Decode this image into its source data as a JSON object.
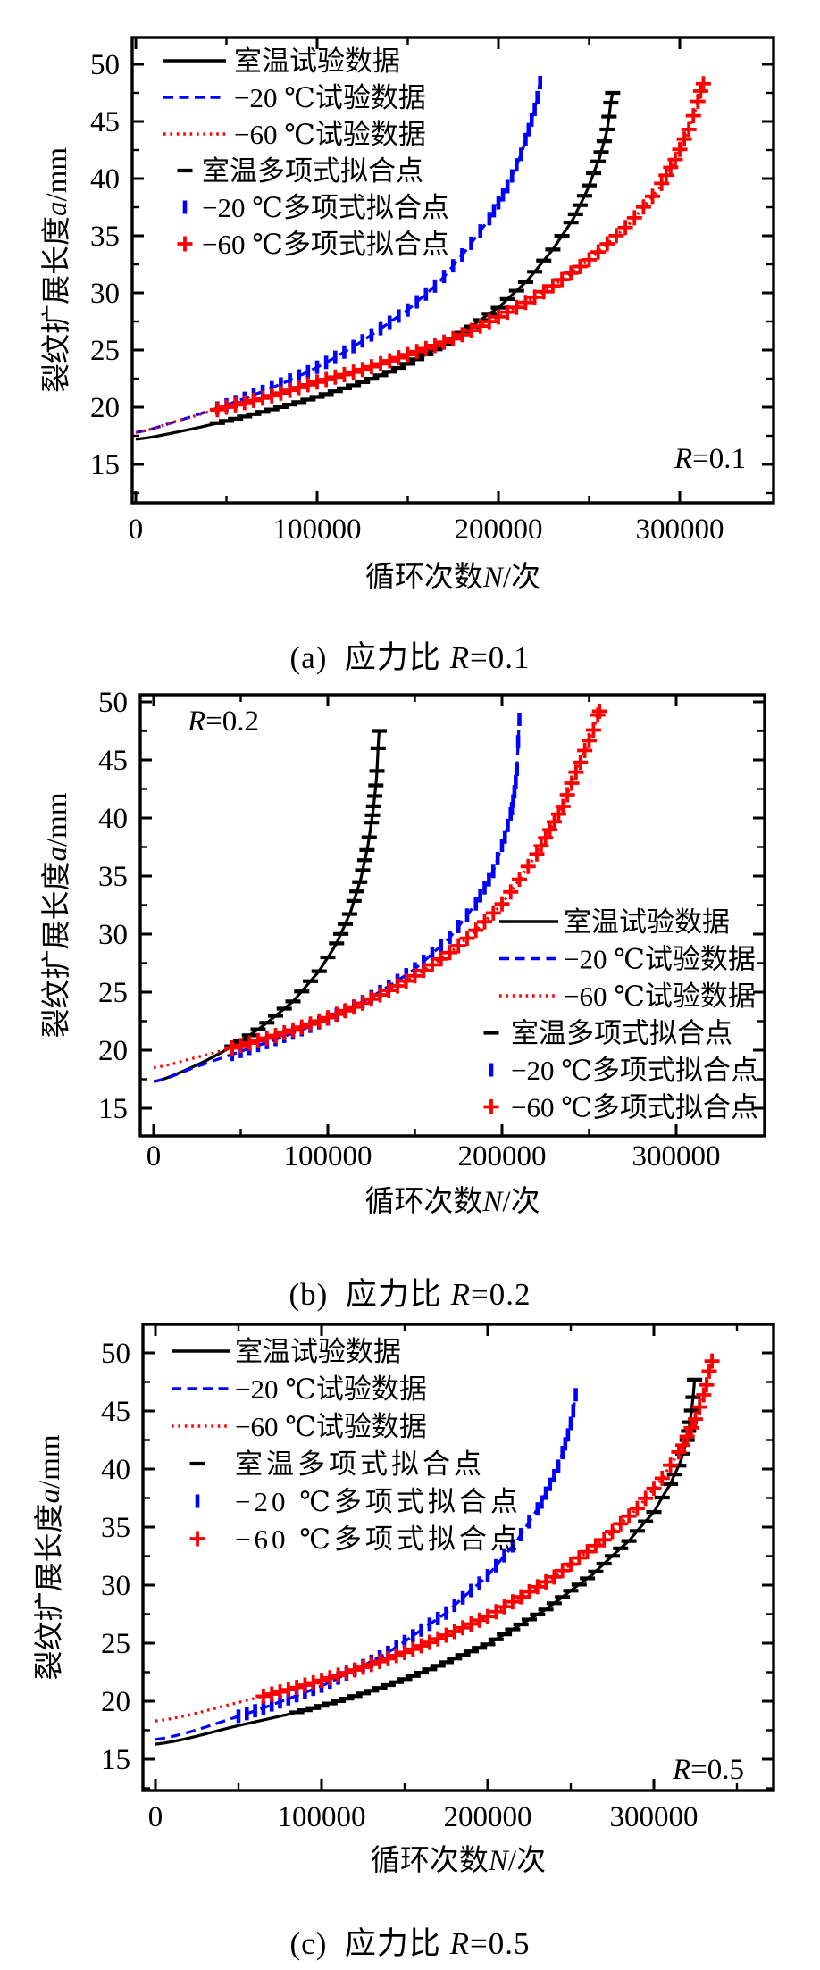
{
  "colors": {
    "room": "#000000",
    "minus20": "#0000ff",
    "minus60": "#ff0000",
    "axis": "#000000",
    "background": "#ffffff"
  },
  "chart_data": [
    {
      "id": "a",
      "type": "line",
      "annotation": {
        "var": "R",
        "text": "=0.1"
      },
      "caption": {
        "prefix": "(a)  应力比 ",
        "var": "R",
        "suffix": "=0.1"
      },
      "xlabel": {
        "prefix": "循环次数",
        "var": "N",
        "suffix": "/次"
      },
      "ylabel": {
        "prefix": "裂纹扩展长度",
        "var": "a",
        "suffix": "/mm"
      },
      "axes": {
        "x": {
          "min": 0,
          "max": 349000,
          "major_ticks": [
            0,
            100000,
            200000,
            300000
          ],
          "tick_labels": [
            "0",
            "100000",
            "200000",
            "300000"
          ],
          "minor_step": 50000
        },
        "y": {
          "min": 12,
          "max": 52.3,
          "major_ticks": [
            15,
            20,
            25,
            30,
            35,
            40,
            45,
            50
          ],
          "minor_step": 2.5
        }
      },
      "legend_position": "top-left",
      "series": [
        {
          "name": "室温试验数据",
          "role": "line",
          "style": "solid",
          "color": "room",
          "points": [
            [
              0,
              17.2
            ],
            [
              25000,
              17.9
            ],
            [
              50000,
              18.8
            ],
            [
              75000,
              19.8
            ],
            [
              100000,
              20.9
            ],
            [
              125000,
              22.2
            ],
            [
              150000,
              23.8
            ],
            [
              175000,
              26.0
            ],
            [
              200000,
              28.7
            ],
            [
              216000,
              31.1
            ],
            [
              230000,
              33.8
            ],
            [
              241000,
              36.4
            ],
            [
              249000,
              39.0
            ],
            [
              256000,
              41.9
            ],
            [
              260000,
              44.3
            ],
            [
              263000,
              47.5
            ]
          ]
        },
        {
          "name": "−20 ℃试验数据",
          "role": "line",
          "style": "dashed",
          "color": "minus20",
          "points": [
            [
              0,
              17.8
            ],
            [
              25000,
              18.9
            ],
            [
              50000,
              20.2
            ],
            [
              75000,
              21.7
            ],
            [
              100000,
              23.5
            ],
            [
              125000,
              25.8
            ],
            [
              150000,
              28.5
            ],
            [
              167000,
              30.9
            ],
            [
              182000,
              33.7
            ],
            [
              195000,
              36.5
            ],
            [
              205000,
              39.3
            ],
            [
              213000,
              42.3
            ],
            [
              218000,
              44.9
            ],
            [
              221000,
              46.6
            ],
            [
              223000,
              48.4
            ]
          ]
        },
        {
          "name": "−60 ℃试验数据",
          "role": "line",
          "style": "dotted",
          "color": "minus60",
          "points": [
            [
              0,
              17.8
            ],
            [
              25000,
              18.9
            ],
            [
              50000,
              20.0
            ],
            [
              75000,
              21.0
            ],
            [
              100000,
              22.2
            ],
            [
              125000,
              23.3
            ],
            [
              150000,
              24.6
            ],
            [
              175000,
              26.0
            ],
            [
              200000,
              27.9
            ],
            [
              225000,
              30.1
            ],
            [
              250000,
              32.9
            ],
            [
              272000,
              36.0
            ],
            [
              288000,
              39.0
            ],
            [
              298000,
              41.8
            ],
            [
              305000,
              44.3
            ],
            [
              309000,
              46.2
            ],
            [
              313000,
              48.3
            ]
          ]
        },
        {
          "name": "室温多项式拟合点",
          "role": "markers",
          "marker": "hdash",
          "color": "room",
          "source": 0,
          "start": 45000,
          "step": 5000
        },
        {
          "name": "−20 ℃多项式拟合点",
          "role": "markers",
          "marker": "vbar",
          "color": "minus20",
          "source": 1,
          "start": 45000,
          "step": 5000
        },
        {
          "name": "−60 ℃多项式拟合点",
          "role": "markers",
          "marker": "plus",
          "color": "minus60",
          "source": 2,
          "start": 45000,
          "step": 5000
        }
      ]
    },
    {
      "id": "b",
      "type": "line",
      "annotation": {
        "var": "R",
        "text": "=0.2"
      },
      "caption": {
        "prefix": "(b)  应力比 ",
        "var": "R",
        "suffix": "=0.2"
      },
      "xlabel": {
        "prefix": "循环次数",
        "var": "N",
        "suffix": "/次"
      },
      "ylabel": {
        "prefix": "裂纹扩展长度",
        "var": "a",
        "suffix": "/mm"
      },
      "axes": {
        "x": {
          "min": 0,
          "max": 351000,
          "major_ticks": [
            0,
            100000,
            200000,
            300000
          ],
          "tick_labels": [
            "0",
            "100000",
            "200000",
            "300000"
          ],
          "minor_step": 50000
        },
        "y": {
          "min": 12.4,
          "max": 50.6,
          "major_ticks": [
            15,
            20,
            25,
            30,
            35,
            40,
            45,
            50
          ],
          "minor_step": 2.5
        }
      },
      "legend_position": "right-bottom",
      "series": [
        {
          "name": "室温试验数据",
          "role": "line",
          "style": "solid",
          "color": "room",
          "points": [
            [
              0,
              17.3
            ],
            [
              20000,
              18.4
            ],
            [
              40000,
              19.9
            ],
            [
              60000,
              21.8
            ],
            [
              80000,
              24.2
            ],
            [
              95000,
              26.8
            ],
            [
              105000,
              29.2
            ],
            [
              113000,
              31.9
            ],
            [
              119000,
              34.8
            ],
            [
              123000,
              37.6
            ],
            [
              126000,
              40.6
            ],
            [
              128000,
              43.5
            ],
            [
              129500,
              47.5
            ]
          ]
        },
        {
          "name": "−20 ℃试验数据",
          "role": "line",
          "style": "dashed",
          "color": "minus20",
          "points": [
            [
              0,
              17.3
            ],
            [
              25000,
              18.6
            ],
            [
              50000,
              19.9
            ],
            [
              75000,
              21.2
            ],
            [
              100000,
              22.7
            ],
            [
              125000,
              24.6
            ],
            [
              150000,
              27.0
            ],
            [
              170000,
              29.7
            ],
            [
              185000,
              32.6
            ],
            [
              195000,
              35.4
            ],
            [
              202000,
              38.5
            ],
            [
              206000,
              41.0
            ],
            [
              208500,
              44.0
            ],
            [
              210000,
              48.5
            ]
          ]
        },
        {
          "name": "−60 ℃试验数据",
          "role": "line",
          "style": "dotted",
          "color": "minus60",
          "points": [
            [
              0,
              18.5
            ],
            [
              25000,
              19.4
            ],
            [
              50000,
              20.4
            ],
            [
              75000,
              21.5
            ],
            [
              100000,
              22.8
            ],
            [
              125000,
              24.4
            ],
            [
              150000,
              26.4
            ],
            [
              175000,
              29.0
            ],
            [
              200000,
              32.6
            ],
            [
              220000,
              36.9
            ],
            [
              235000,
              41.0
            ],
            [
              245000,
              44.8
            ],
            [
              252000,
              47.3
            ],
            [
              256000,
              49.2
            ]
          ]
        },
        {
          "name": "室温多项式拟合点",
          "role": "markers",
          "marker": "hdash",
          "color": "room",
          "source": 0,
          "start": 45000,
          "step": 5000
        },
        {
          "name": "−20 ℃多项式拟合点",
          "role": "markers",
          "marker": "vbar",
          "color": "minus20",
          "source": 1,
          "start": 45000,
          "step": 5000
        },
        {
          "name": "−60 ℃多项式拟合点",
          "role": "markers",
          "marker": "plus",
          "color": "minus60",
          "source": 2,
          "start": 45000,
          "step": 5000
        }
      ]
    },
    {
      "id": "c",
      "type": "line",
      "annotation": {
        "var": "R",
        "text": "=0.5"
      },
      "caption": {
        "prefix": "(c)  应力比 ",
        "var": "R",
        "suffix": "=0.5"
      },
      "xlabel": {
        "prefix": "循环次数",
        "var": "N",
        "suffix": "/次"
      },
      "ylabel": {
        "prefix": "裂纹扩展长度",
        "var": "a",
        "suffix": "/mm"
      },
      "axes": {
        "x": {
          "min": 0,
          "max": 372000,
          "major_ticks": [
            0,
            100000,
            200000,
            300000
          ],
          "tick_labels": [
            "0",
            "100000",
            "200000",
            "300000"
          ],
          "minor_step": 50000
        },
        "y": {
          "min": 12.3,
          "max": 52.5,
          "major_ticks": [
            15,
            20,
            25,
            30,
            35,
            40,
            45,
            50
          ],
          "minor_step": 2.5
        }
      },
      "legend_position": "top-left",
      "series": [
        {
          "name": "室温试验数据",
          "role": "line",
          "style": "solid",
          "color": "room",
          "points": [
            [
              0,
              16.3
            ],
            [
              50000,
              17.9
            ],
            [
              100000,
              19.6
            ],
            [
              150000,
              21.9
            ],
            [
              200000,
              24.9
            ],
            [
              235000,
              27.9
            ],
            [
              263000,
              30.9
            ],
            [
              285000,
              33.8
            ],
            [
              300000,
              36.3
            ],
            [
              310000,
              38.7
            ],
            [
              316000,
              40.6
            ],
            [
              320000,
              42.5
            ],
            [
              322000,
              44.2
            ],
            [
              323500,
              46.0
            ],
            [
              324500,
              47.7
            ]
          ]
        },
        {
          "name": "−20 ℃试验数据",
          "role": "line",
          "style": "dashed",
          "color": "minus20",
          "points": [
            [
              0,
              16.7
            ],
            [
              50000,
              18.7
            ],
            [
              100000,
              21.3
            ],
            [
              140000,
              24.2
            ],
            [
              175000,
              27.6
            ],
            [
              200000,
              30.8
            ],
            [
              218000,
              33.9
            ],
            [
              232000,
              37.0
            ],
            [
              242000,
              40.0
            ],
            [
              248000,
              42.7
            ],
            [
              251000,
              44.5
            ],
            [
              253000,
              46.4
            ]
          ]
        },
        {
          "name": "−60 ℃试验数据",
          "role": "line",
          "style": "dotted",
          "color": "minus60",
          "points": [
            [
              0,
              18.3
            ],
            [
              50000,
              19.9
            ],
            [
              100000,
              21.8
            ],
            [
              150000,
              24.2
            ],
            [
              200000,
              27.3
            ],
            [
              240000,
              30.7
            ],
            [
              270000,
              33.9
            ],
            [
              290000,
              36.6
            ],
            [
              305000,
              39.2
            ],
            [
              317000,
              41.9
            ],
            [
              325000,
              44.3
            ],
            [
              331000,
              46.8
            ],
            [
              335000,
              49.3
            ]
          ]
        },
        {
          "name": "室温多项式拟合点",
          "role": "markers",
          "marker": "hdash",
          "color": "room",
          "source": 0,
          "start": 85000,
          "step": 5000
        },
        {
          "name": "−20 ℃多项式拟合点",
          "role": "markers",
          "marker": "vbar",
          "color": "minus20",
          "source": 1,
          "start": 50000,
          "step": 5000
        },
        {
          "name": "−60 ℃多项式拟合点",
          "role": "markers",
          "marker": "plus",
          "color": "minus60",
          "source": 2,
          "start": 65000,
          "step": 5000
        }
      ]
    }
  ]
}
